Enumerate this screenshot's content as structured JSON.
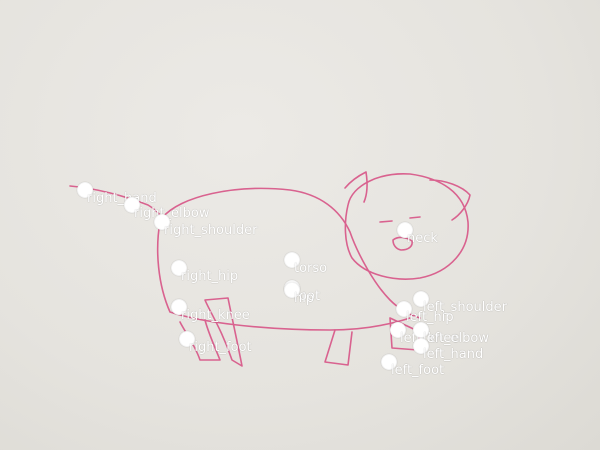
{
  "keypoints": [
    {
      "id": "right_hand",
      "label": "right_hand"
    },
    {
      "id": "right_elbow",
      "label": "right_elbow"
    },
    {
      "id": "right_shoulder",
      "label": "right_shoulder"
    },
    {
      "id": "neck",
      "label": "neck"
    },
    {
      "id": "torso",
      "label": "torso"
    },
    {
      "id": "right_hip",
      "label": "right_hip"
    },
    {
      "id": "root",
      "label": "root"
    },
    {
      "id": "hip",
      "label": "hip"
    },
    {
      "id": "left_shoulder",
      "label": "left_shoulder"
    },
    {
      "id": "left_hip",
      "label": "left_hip"
    },
    {
      "id": "right_knee",
      "label": "right_knee"
    },
    {
      "id": "left_knee",
      "label": "left_knee"
    },
    {
      "id": "left_elbow",
      "label": "left_elbow"
    },
    {
      "id": "right_foot",
      "label": "right_foot"
    },
    {
      "id": "left_hand",
      "label": "left_hand"
    },
    {
      "id": "left_foot",
      "label": "left_foot"
    }
  ],
  "colors": {
    "stroke": "#d9628f",
    "marker": "#ffffff",
    "paper": "#e6e4df"
  }
}
